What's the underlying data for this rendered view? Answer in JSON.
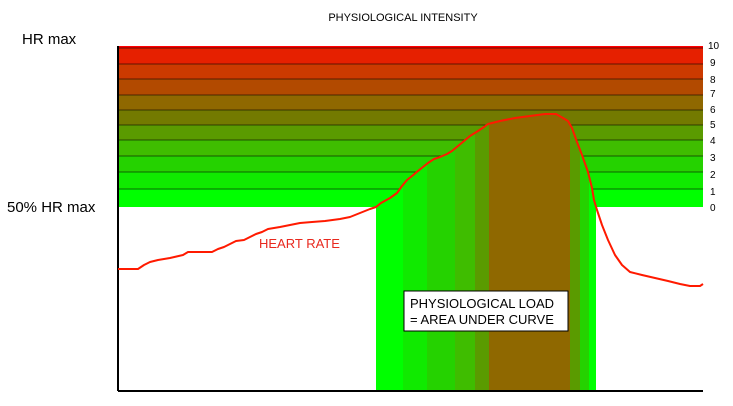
{
  "title": "PHYSIOLOGICAL INTENSITY",
  "labels": {
    "hr_max": "HR max",
    "half_hr_max": "50% HR max",
    "heart_rate": "HEART RATE",
    "load_line1": "PHYSIOLOGICAL LOAD",
    "load_line2": "= AREA UNDER CURVE"
  },
  "zones": [
    "0",
    "1",
    "2",
    "3",
    "4",
    "5",
    "6",
    "7",
    "8",
    "9",
    "10"
  ],
  "colors": {
    "heart_rate_line": "#ff1a00",
    "heart_rate_label": "#e8281e",
    "zone_0": "#00ff00",
    "zone_1": "#10ea00",
    "zone_2": "#25d200",
    "zone_3": "#3fbd00",
    "zone_4": "#5a9b00",
    "zone_5": "#737a00",
    "zone_6": "#8f6800",
    "zone_7": "#b24a00",
    "zone_8": "#cc3a00",
    "zone_9": "#e62000",
    "zone_10": "#ff0000"
  }
}
